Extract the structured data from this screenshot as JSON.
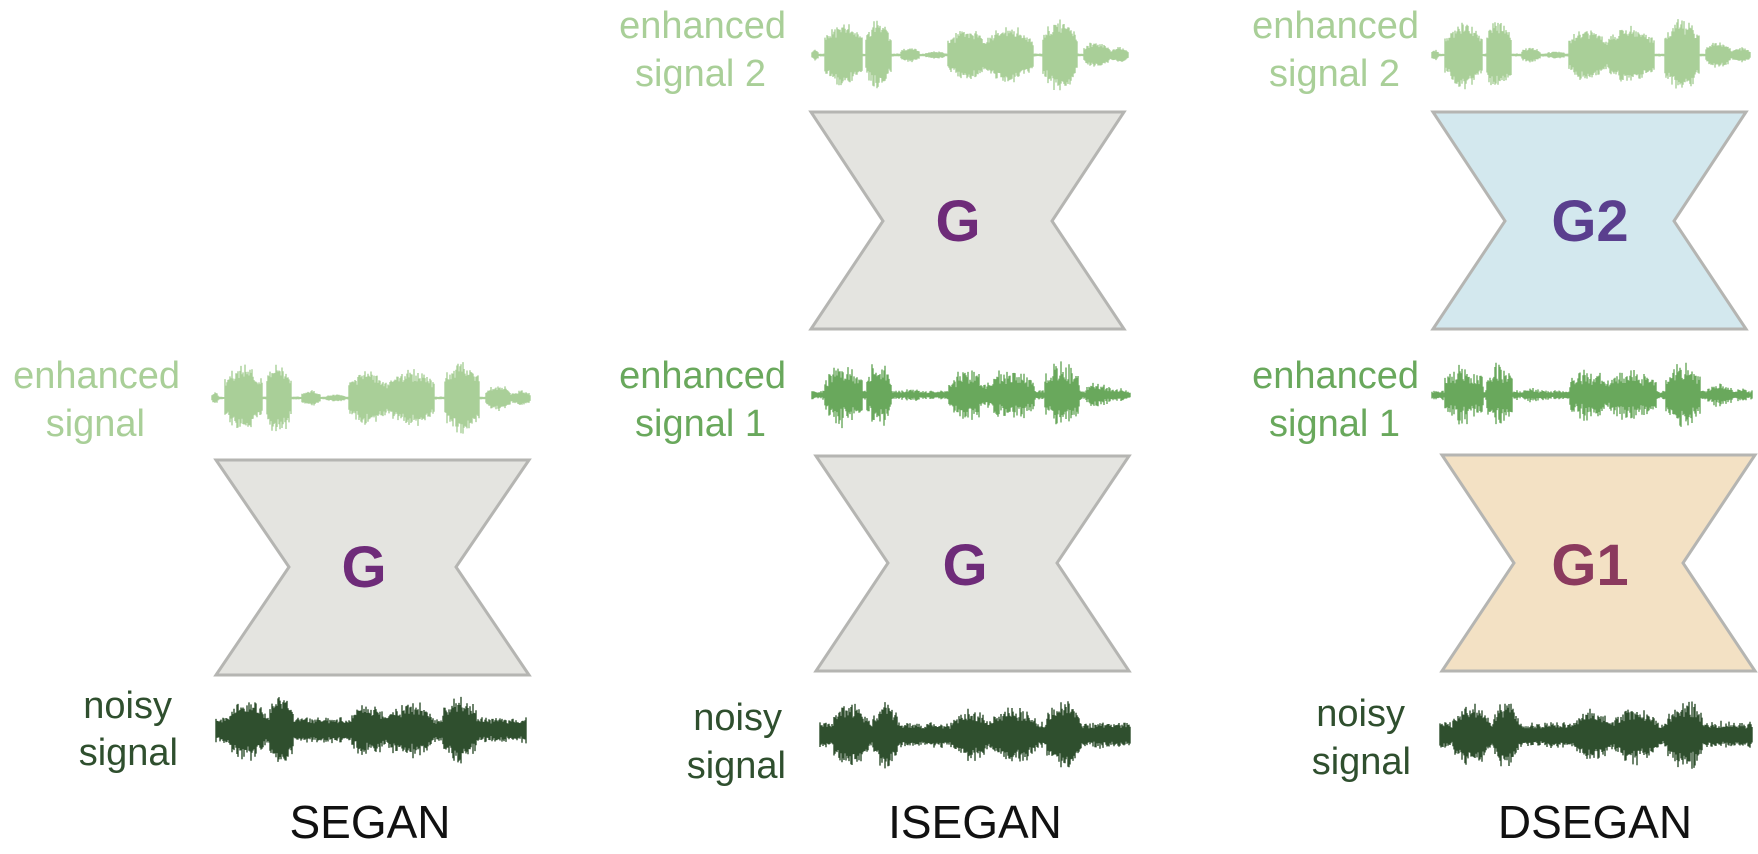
{
  "colors": {
    "enhanced_light": "#a9cf98",
    "enhanced_mid": "#69a85c",
    "noisy_dark": "#2f4f2e",
    "generator_gray": "#e4e4e0",
    "generator_blue": "#d3e8ee",
    "generator_peach": "#f3e1c4",
    "g_purple": "#6e2b79",
    "g2_purple": "#5a3f8e",
    "g1_maroon": "#8b3a5e"
  },
  "segan": {
    "title": "SEGAN",
    "generator": {
      "label": "G",
      "color": "gray"
    },
    "output": {
      "line1": "enhanced",
      "line2": "signal"
    },
    "input": {
      "line1": "noisy",
      "line2": "signal"
    }
  },
  "isegan": {
    "title": "ISEGAN",
    "generator_top": {
      "label": "G",
      "color": "gray"
    },
    "generator_bottom": {
      "label": "G",
      "color": "gray"
    },
    "output_top": {
      "line1": "enhanced",
      "line2": "signal 2"
    },
    "output_mid": {
      "line1": "enhanced",
      "line2": "signal 1"
    },
    "input": {
      "line1": "noisy",
      "line2": "signal"
    }
  },
  "dsegan": {
    "title": "DSEGAN",
    "generator_top": {
      "label": "G2",
      "color": "blue"
    },
    "generator_bottom": {
      "label": "G1",
      "color": "peach"
    },
    "output_top": {
      "line1": "enhanced",
      "line2": "signal 2"
    },
    "output_mid": {
      "line1": "enhanced",
      "line2": "signal 1"
    },
    "input": {
      "line1": "noisy",
      "line2": "signal"
    }
  }
}
